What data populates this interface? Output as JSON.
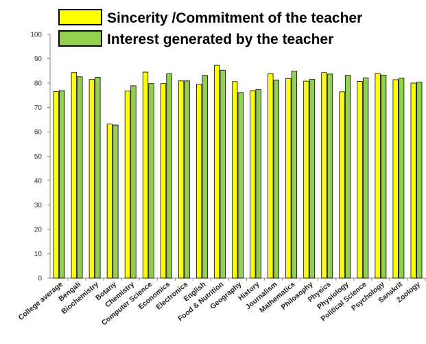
{
  "chart_data": {
    "type": "bar",
    "title": "",
    "xlabel": "",
    "ylabel": "",
    "ylim": [
      0,
      100
    ],
    "yticks": [
      0,
      10,
      20,
      30,
      40,
      50,
      60,
      70,
      80,
      90,
      100
    ],
    "grid": false,
    "legend_position": "top",
    "categories": [
      "College average",
      "Bengali",
      "Biochemistry",
      "Botany",
      "Chemistry",
      "Computer Science",
      "Economics",
      "Electronics",
      "English",
      "Food & Nutrition",
      "Geography",
      "History",
      "Journalism",
      "Mathematics",
      "Philosophy",
      "Physics",
      "Physiology",
      "Political Science",
      "Psychology",
      "Sanskrit",
      "Zoology"
    ],
    "series": [
      {
        "name": "Sincerity /Commitment of the teacher",
        "color": "#ffff00",
        "values": [
          76.5,
          84.3,
          81.5,
          63.2,
          76.8,
          84.5,
          79.8,
          80.9,
          79.5,
          87.3,
          80.6,
          76.9,
          83.9,
          81.9,
          80.8,
          84.3,
          76.4,
          80.7,
          83.9,
          81.4,
          80.0
        ]
      },
      {
        "name": "Interest generated by the teacher",
        "color": "#92d050",
        "values": [
          76.9,
          82.6,
          82.4,
          62.8,
          78.9,
          79.8,
          83.8,
          80.9,
          83.2,
          85.3,
          76.1,
          77.3,
          81.2,
          84.9,
          81.5,
          83.7,
          83.2,
          82.1,
          83.3,
          82.0,
          80.4
        ]
      }
    ]
  }
}
